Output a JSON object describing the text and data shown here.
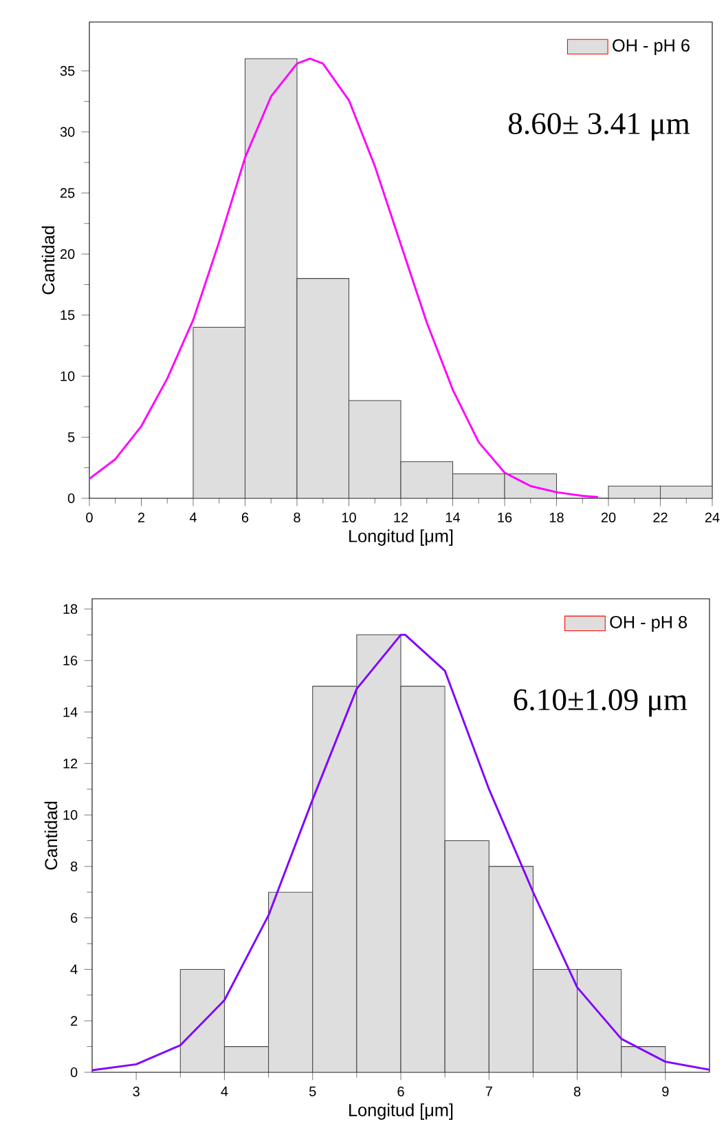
{
  "chart_data": [
    {
      "type": "histogram",
      "xlabel": "Longitud [μm]",
      "ylabel": "Cantidad",
      "xlim": [
        0,
        24
      ],
      "ylim": [
        0,
        39
      ],
      "xticks": [
        0,
        2,
        4,
        6,
        8,
        10,
        12,
        14,
        16,
        18,
        20,
        22,
        24
      ],
      "yticks": [
        0,
        5,
        10,
        15,
        20,
        25,
        30,
        35
      ],
      "legend": "top right",
      "annotations": [
        "8.60± 3.41 μm"
      ],
      "series": [
        {
          "name": "OH - pH 6",
          "color": "#444444",
          "bins": [
            4,
            6,
            8,
            10,
            12,
            14,
            16,
            18,
            20,
            22,
            24
          ],
          "values": [
            14,
            36,
            18,
            8,
            3,
            2,
            2,
            0,
            1,
            1
          ]
        },
        {
          "type": "line",
          "color": "#ff00ff",
          "x": [
            0,
            1,
            2,
            3,
            4,
            5,
            6,
            7,
            8,
            8.5,
            9,
            10,
            11,
            12,
            13,
            14,
            15,
            16,
            17,
            18,
            19,
            19.6
          ],
          "values": [
            1.6,
            3.2,
            5.9,
            9.8,
            14.6,
            21.0,
            27.9,
            32.9,
            35.6,
            36,
            35.6,
            32.6,
            27.2,
            20.8,
            14.4,
            8.9,
            4.6,
            2.1,
            1.0,
            0.5,
            0.2,
            0.1
          ]
        }
      ]
    },
    {
      "type": "histogram",
      "xlabel": "Longitud [μm]",
      "ylabel": "Cantidad",
      "xlim": [
        2.5,
        9.5
      ],
      "ylim": [
        0,
        18.4
      ],
      "xticks": [
        3,
        4,
        5,
        6,
        7,
        8,
        9
      ],
      "yticks": [
        0,
        2,
        4,
        6,
        8,
        10,
        12,
        14,
        16,
        18
      ],
      "legend": "top right",
      "annotations": [
        "6.10±1.09 μm"
      ],
      "series": [
        {
          "name": "OH - pH 8",
          "color": "#444444",
          "bins": [
            3.5,
            4,
            4.5,
            5,
            5.5,
            6,
            6.5,
            7,
            7.5,
            8,
            8.5,
            9
          ],
          "values": [
            4,
            1,
            7,
            15,
            17,
            15,
            9,
            8,
            4,
            4,
            1
          ]
        },
        {
          "type": "line",
          "color": "#8000ff",
          "x": [
            2.5,
            3,
            3.5,
            4,
            4.5,
            5,
            5.5,
            6,
            6.05,
            6.5,
            7,
            7.5,
            8,
            8.5,
            9,
            9.5
          ],
          "values": [
            0.08,
            0.31,
            1.05,
            2.8,
            6.1,
            10.6,
            14.9,
            17.0,
            17,
            15.6,
            11.0,
            7.0,
            3.3,
            1.3,
            0.41,
            0.1
          ]
        }
      ]
    }
  ]
}
